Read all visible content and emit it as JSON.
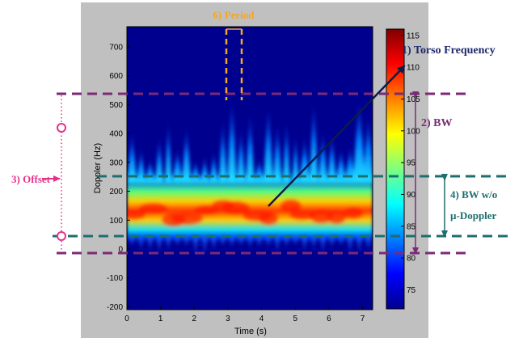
{
  "figure": {
    "x_axis": {
      "label": "Time (s)",
      "ticks": [
        "0",
        "1",
        "2",
        "3",
        "4",
        "5",
        "6",
        "7"
      ],
      "range": [
        0,
        7.3
      ]
    },
    "y_axis": {
      "label": "Doppler (Hz)",
      "ticks": [
        "-200",
        "-100",
        "0",
        "100",
        "200",
        "300",
        "400",
        "500",
        "600",
        "700"
      ],
      "range": [
        -210,
        770
      ]
    },
    "colorbar": {
      "ticks": [
        "115",
        "110",
        "105",
        "100",
        "95",
        "90",
        "85",
        "80",
        "75"
      ],
      "range": [
        72,
        116
      ]
    },
    "annotations": {
      "torso_frequency": "1) Torso Frequency",
      "bw": "2) BW",
      "offset": "3) Offset",
      "bw_wo_line1": "4) BW w/o",
      "bw_wo_line2": "µ-Doppler",
      "period": "6) Period"
    },
    "colors": {
      "frame_bg": "#c0c0c0",
      "plot_bg": "#00008f",
      "purple_annot": "#7b2a77",
      "teal_annot": "#1f6e6e",
      "orange_annot": "#f5a623",
      "magenta_annot": "#e8308a",
      "navy_annot": "#1d2a6b",
      "arrow": "#0d1a4d"
    }
  }
}
